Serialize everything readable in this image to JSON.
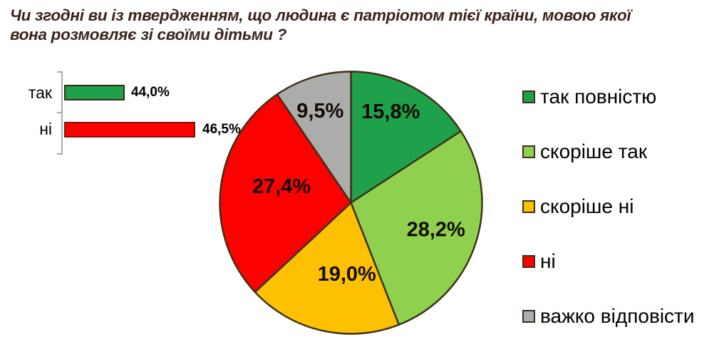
{
  "title": {
    "line1": "Чи згодні ви із твердженням, що людина є патріотом тієї країни, мовою якої",
    "line2": "вона розмовляє зі своїми дітьми ?"
  },
  "chart_data": [
    {
      "type": "bar",
      "orientation": "horizontal",
      "categories": [
        "так",
        "ні"
      ],
      "values": [
        44.0,
        46.5
      ],
      "value_labels": [
        "44,0%",
        "46,5%"
      ],
      "colors": [
        "#1FA14C",
        "#FD0000"
      ],
      "grid": false,
      "legend_position": "none"
    },
    {
      "type": "pie",
      "labels": [
        "так повністю",
        "скоріше так",
        "скоріше ні",
        "ні",
        "важко відповісти"
      ],
      "values": [
        15.8,
        28.2,
        19.0,
        27.4,
        9.5
      ],
      "value_labels": [
        "15,8%",
        "28,2%",
        "19,0%",
        "27,4%",
        "9,5%"
      ],
      "colors": [
        "#1FA14C",
        "#8FD14F",
        "#FDC101",
        "#FD0000",
        "#ACACAB"
      ],
      "start_angle_deg": -90,
      "direction": "clockwise",
      "legend_position": "right",
      "outline_color": "#3B2F17"
    }
  ]
}
